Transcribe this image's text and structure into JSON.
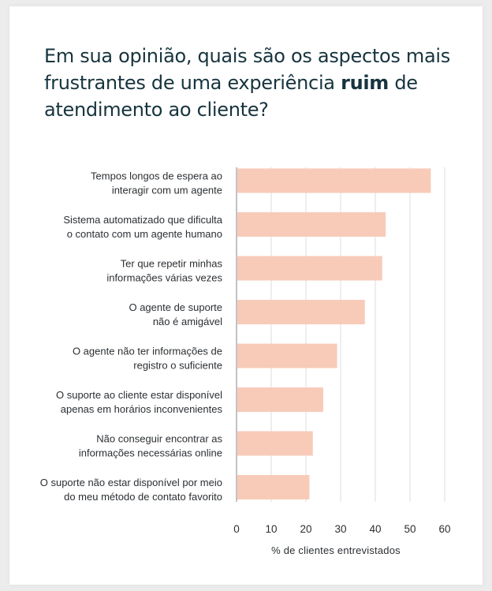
{
  "title": {
    "before": "Em sua opinião, quais são os aspectos mais frustrantes de uma experiência ",
    "emphasis": "ruim",
    "after": " de atendimento ao cliente?"
  },
  "chart_data": {
    "type": "bar",
    "orientation": "horizontal",
    "categories": [
      [
        "Tempos longos de espera ao",
        "interagir com um agente"
      ],
      [
        "Sistema automatizado que dificulta",
        "o contato com um agente humano"
      ],
      [
        "Ter que repetir minhas",
        "informações várias vezes"
      ],
      [
        "O agente de suporte",
        "não é amigável"
      ],
      [
        "O agente não ter informações de",
        "registro o suficiente"
      ],
      [
        "O suporte ao cliente estar disponível",
        "apenas em horários inconvenientes"
      ],
      [
        "Não conseguir encontrar as",
        "informações necessárias online"
      ],
      [
        "O suporte não estar disponível por meio",
        "do meu método de contato favorito"
      ]
    ],
    "values": [
      56,
      43,
      42,
      37,
      29,
      25,
      22,
      21
    ],
    "xlabel": "% de clientes entrevistados",
    "xlim": [
      0,
      60
    ],
    "xticks": [
      0,
      10,
      20,
      30,
      40,
      50,
      60
    ],
    "grid": "vertical",
    "bar_color": "#f8cbb9",
    "grid_color": "#dcdcdc",
    "text_color": "#2b2f33",
    "title_color": "#17343e"
  }
}
